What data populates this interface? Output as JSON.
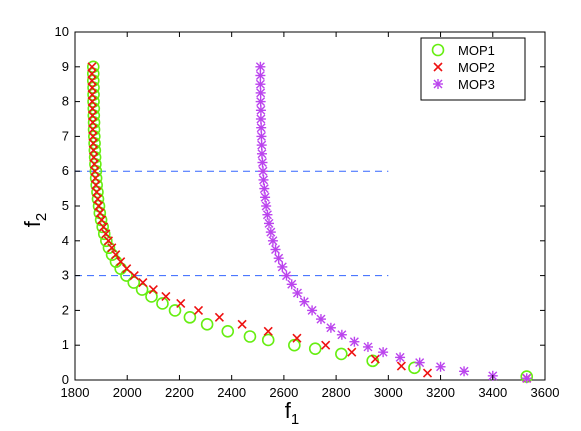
{
  "chart_data": {
    "type": "scatter",
    "xlabel": "f",
    "xlabel_sub": "1",
    "ylabel": "f",
    "ylabel_sub": "2",
    "xlim": [
      1800,
      3600
    ],
    "ylim": [
      0,
      10
    ],
    "xticks": [
      "1800",
      "2000",
      "2200",
      "2400",
      "2600",
      "2800",
      "3000",
      "3200",
      "3400",
      "3600"
    ],
    "yticks": [
      "0",
      "1",
      "2",
      "3",
      "4",
      "5",
      "6",
      "7",
      "8",
      "9",
      "10"
    ],
    "grid": false,
    "legend_position": "top-right",
    "reference_lines": [
      {
        "y": 6,
        "x_from": 1800,
        "x_to": 3000,
        "color": "#3366ff",
        "style": "dashed"
      },
      {
        "y": 3,
        "x_from": 1800,
        "x_to": 3000,
        "color": "#3366ff",
        "style": "dashed"
      }
    ],
    "series": [
      {
        "name": "MOP1",
        "marker": "circle",
        "color": "#66ee11",
        "x": [
          1870,
          1870,
          1870,
          1871,
          1871,
          1871,
          1872,
          1872,
          1873,
          1873,
          1874,
          1875,
          1876,
          1877,
          1878,
          1880,
          1881,
          1883,
          1886,
          1888,
          1892,
          1895,
          1900,
          1906,
          1912,
          1920,
          1930,
          1942,
          1957,
          1975,
          1997,
          2025,
          2057,
          2093,
          2135,
          2183,
          2240,
          2306,
          2385,
          2470,
          2540,
          2640,
          2720,
          2820,
          2940,
          3100,
          3530
        ],
        "y": [
          9,
          8.8,
          8.6,
          8.4,
          8.2,
          8,
          7.8,
          7.6,
          7.4,
          7.2,
          7,
          6.8,
          6.6,
          6.4,
          6.2,
          6,
          5.8,
          5.6,
          5.4,
          5.2,
          5,
          4.8,
          4.6,
          4.4,
          4.2,
          4,
          3.8,
          3.6,
          3.4,
          3.2,
          3,
          2.8,
          2.6,
          2.4,
          2.2,
          2,
          1.8,
          1.6,
          1.4,
          1.25,
          1.15,
          1,
          0.9,
          0.75,
          0.55,
          0.35,
          0.1
        ]
      },
      {
        "name": "MOP2",
        "marker": "x",
        "color": "#ee1111",
        "x": [
          1865,
          1865,
          1865,
          1866,
          1866,
          1866,
          1867,
          1867,
          1868,
          1868,
          1869,
          1870,
          1871,
          1872,
          1874,
          1876,
          1878,
          1880,
          1883,
          1887,
          1891,
          1896,
          1902,
          1909,
          1918,
          1928,
          1941,
          1956,
          1975,
          1998,
          2027,
          2060,
          2100,
          2148,
          2205,
          2273,
          2353,
          2440,
          2540,
          2650,
          2760,
          2860,
          2950,
          3050,
          3150,
          3530
        ],
        "y": [
          9,
          8.8,
          8.6,
          8.4,
          8.2,
          8,
          7.8,
          7.6,
          7.4,
          7.2,
          7,
          6.8,
          6.6,
          6.4,
          6.2,
          6,
          5.8,
          5.6,
          5.4,
          5.2,
          5,
          4.8,
          4.6,
          4.4,
          4.2,
          4,
          3.8,
          3.6,
          3.4,
          3.2,
          3,
          2.8,
          2.6,
          2.4,
          2.2,
          2,
          1.8,
          1.6,
          1.4,
          1.2,
          1,
          0.8,
          0.6,
          0.4,
          0.2,
          0.05
        ]
      },
      {
        "name": "MOP3",
        "marker": "star",
        "color": "#bb44ee",
        "x": [
          2510,
          2510,
          2510,
          2511,
          2511,
          2512,
          2512,
          2513,
          2514,
          2515,
          2516,
          2518,
          2520,
          2522,
          2525,
          2528,
          2532,
          2537,
          2543,
          2550,
          2558,
          2568,
          2580,
          2594,
          2610,
          2630,
          2652,
          2678,
          2708,
          2742,
          2780,
          2822,
          2870,
          2922,
          2980,
          3045,
          3120,
          3200,
          3290,
          3400,
          3530
        ],
        "y": [
          9,
          8.75,
          8.5,
          8.25,
          8,
          7.75,
          7.5,
          7.25,
          7,
          6.75,
          6.5,
          6.25,
          6,
          5.75,
          5.5,
          5.25,
          5,
          4.75,
          4.5,
          4.25,
          4,
          3.75,
          3.5,
          3.25,
          3,
          2.75,
          2.5,
          2.25,
          2,
          1.75,
          1.5,
          1.3,
          1.1,
          0.95,
          0.8,
          0.65,
          0.5,
          0.38,
          0.25,
          0.12,
          0.05
        ]
      }
    ]
  }
}
